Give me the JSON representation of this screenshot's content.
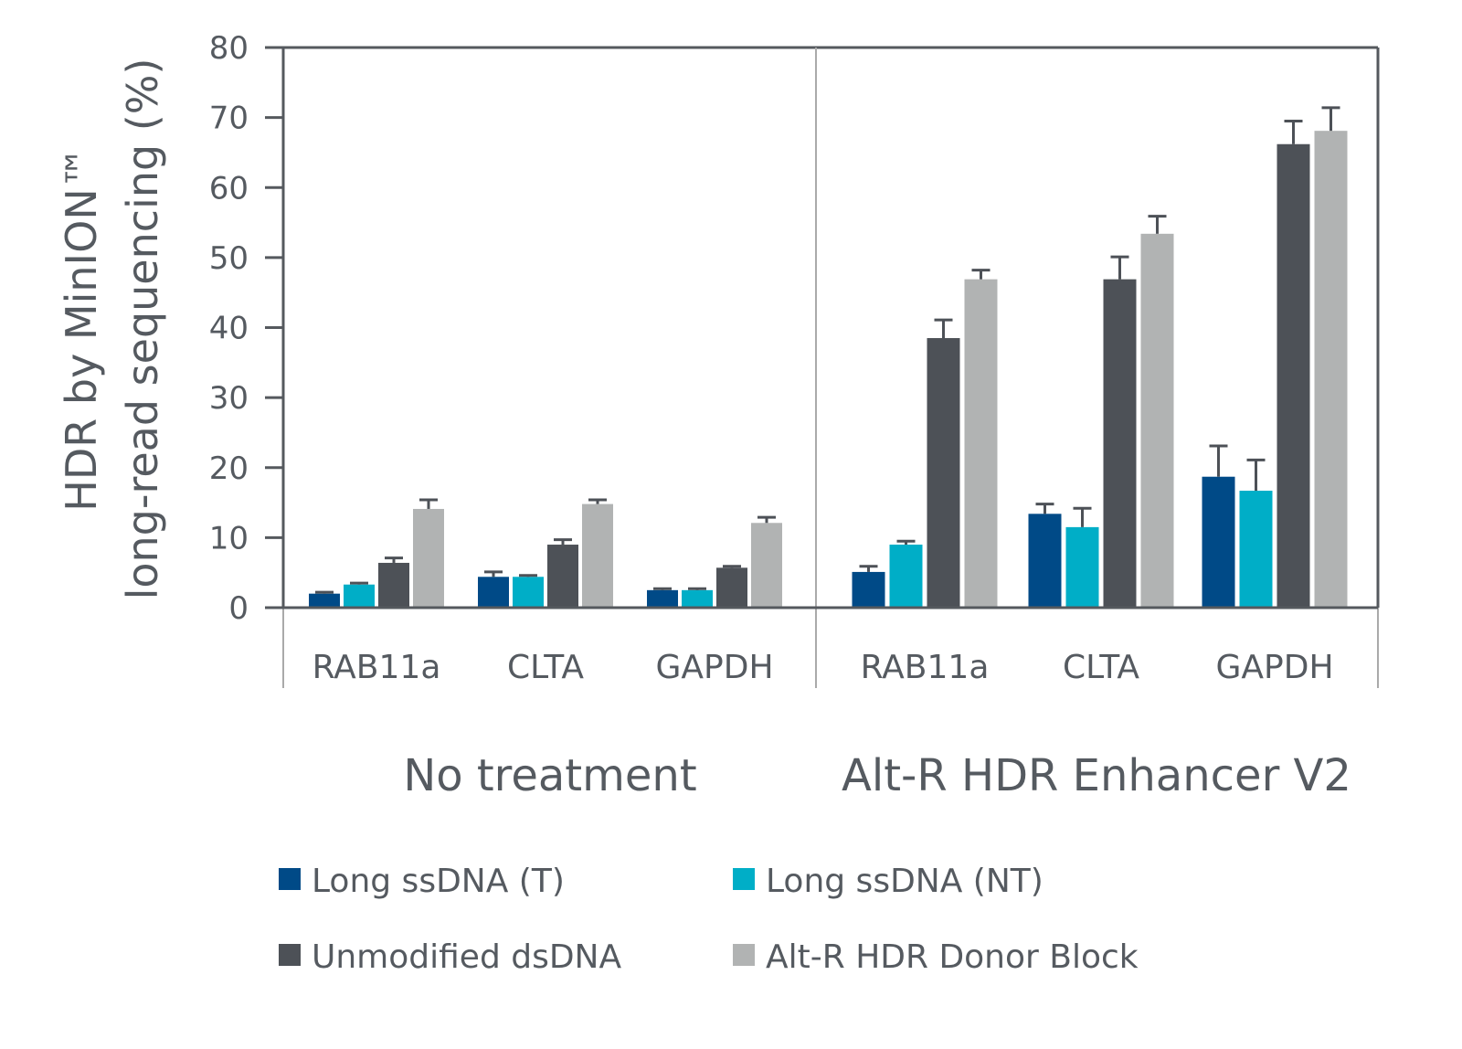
{
  "chart_data": {
    "type": "bar",
    "ylabel_line1": "HDR by MinION™",
    "ylabel_line2": "long-read sequencing (%)",
    "ylim": [
      0,
      80
    ],
    "yticks": [
      "0",
      "10",
      "20",
      "30",
      "40",
      "50",
      "60",
      "70",
      "80"
    ],
    "grid": false,
    "legend_position": "bottom",
    "panels": [
      {
        "label": "No treatment",
        "categories": [
          "RAB11a",
          "CLTA",
          "GAPDH"
        ],
        "series": [
          {
            "name": "Long ssDNA (T)",
            "values": [
              2.0,
              4.4,
              2.5
            ],
            "errors": [
              0.2,
              0.7,
              0.2
            ]
          },
          {
            "name": "Long ssDNA (NT)",
            "values": [
              3.3,
              4.4,
              2.5
            ],
            "errors": [
              0.2,
              0.2,
              0.2
            ]
          },
          {
            "name": "Unmodified dsDNA",
            "values": [
              6.4,
              9.0,
              5.7
            ],
            "errors": [
              0.7,
              0.7,
              0.2
            ]
          },
          {
            "name": "Alt-R HDR Donor Block",
            "values": [
              14.1,
              14.8,
              12.1
            ],
            "errors": [
              1.3,
              0.6,
              0.8
            ]
          }
        ]
      },
      {
        "label": "Alt-R HDR Enhancer V2",
        "categories": [
          "RAB11a",
          "CLTA",
          "GAPDH"
        ],
        "series": [
          {
            "name": "Long ssDNA (T)",
            "values": [
              5.1,
              13.4,
              18.7
            ],
            "errors": [
              0.8,
              1.4,
              4.4
            ]
          },
          {
            "name": "Long ssDNA (NT)",
            "values": [
              9.0,
              11.5,
              16.7
            ],
            "errors": [
              0.5,
              2.7,
              4.4
            ]
          },
          {
            "name": "Unmodified dsDNA",
            "values": [
              38.5,
              46.9,
              66.2
            ],
            "errors": [
              2.6,
              3.2,
              3.3
            ]
          },
          {
            "name": "Alt-R HDR Donor Block",
            "values": [
              46.9,
              53.4,
              68.1
            ],
            "errors": [
              1.3,
              2.5,
              3.3
            ]
          }
        ]
      }
    ],
    "legend": [
      "Long ssDNA (T)",
      "Long ssDNA (NT)",
      "Unmodified dsDNA",
      "Alt-R HDR Donor Block"
    ],
    "colors": [
      "#004a87",
      "#00aec7",
      "#4d5157",
      "#b1b3b3"
    ]
  }
}
